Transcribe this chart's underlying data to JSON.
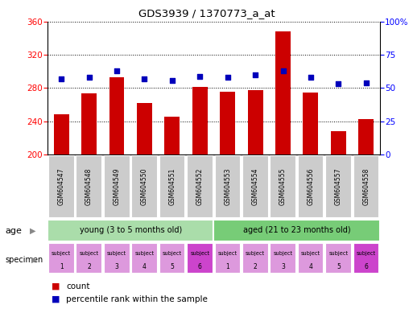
{
  "title": "GDS3939 / 1370773_a_at",
  "samples": [
    "GSM604547",
    "GSM604548",
    "GSM604549",
    "GSM604550",
    "GSM604551",
    "GSM604552",
    "GSM604553",
    "GSM604554",
    "GSM604555",
    "GSM604556",
    "GSM604557",
    "GSM604558"
  ],
  "bar_values": [
    248,
    274,
    293,
    262,
    246,
    281,
    276,
    278,
    348,
    275,
    228,
    243
  ],
  "blue_values": [
    57,
    58,
    63,
    57,
    56,
    59,
    58,
    60,
    63,
    58,
    53,
    54
  ],
  "ylim_left": [
    200,
    360
  ],
  "ylim_right": [
    0,
    100
  ],
  "yticks_left": [
    200,
    240,
    280,
    320,
    360
  ],
  "yticks_right": [
    0,
    25,
    50,
    75,
    100
  ],
  "bar_color": "#cc0000",
  "dot_color": "#0000bb",
  "age_groups": [
    {
      "label": "young (3 to 5 months old)",
      "start": 0,
      "end": 6,
      "color": "#aaddaa"
    },
    {
      "label": "aged (21 to 23 months old)",
      "start": 6,
      "end": 12,
      "color": "#77cc77"
    }
  ],
  "specimen_colors_light": "#dd99dd",
  "specimen_colors_dark": "#cc44cc",
  "specimen_dark_indices": [
    5,
    11
  ],
  "specimen_labels_top": [
    "subject",
    "subject",
    "subject",
    "subject",
    "subject",
    "subject",
    "subject",
    "subject",
    "subject",
    "subject",
    "subject",
    "subject"
  ],
  "specimen_labels_num": [
    "1",
    "2",
    "3",
    "4",
    "5",
    "6",
    "1",
    "2",
    "3",
    "4",
    "5",
    "6"
  ],
  "xticklabel_bg": "#cccccc",
  "bg_color": "#ffffff"
}
